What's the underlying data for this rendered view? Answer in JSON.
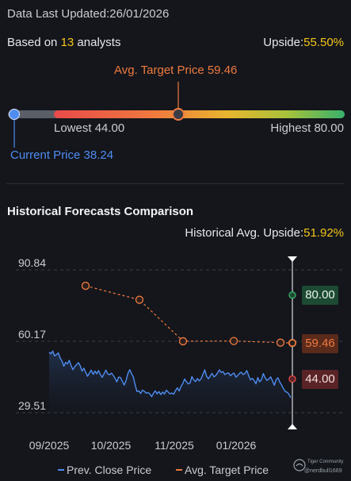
{
  "header": {
    "updated_label": "Data Last Updated:",
    "updated_date": "26/01/2026"
  },
  "consensus": {
    "prefix": "Based on ",
    "count": "13",
    "suffix": " analysts",
    "upside_label": "Upside:",
    "upside_value": "55.50%"
  },
  "range_bar": {
    "avg_label": "Avg. Target Price 59.46",
    "lowest_label": "Lowest 44.00",
    "highest_label": "Highest 80.00",
    "current_label": "Current Price 38.24",
    "lowest": 44.0,
    "highest": 80.0,
    "avg": 59.46,
    "current": 38.24,
    "colors": {
      "current": "#4f8cf0",
      "avg": "#f07a3e"
    }
  },
  "history": {
    "title": "Historical Forecasts Comparison",
    "upside_label": "Historical Avg. Upside:",
    "upside_value": "51.92%"
  },
  "tags": {
    "high": "80.00",
    "avg": "59.46",
    "low": "44.00"
  },
  "watermark": {
    "brand": "Tiger Community",
    "user": "@nerdbull1669"
  },
  "chart_data": {
    "type": "line",
    "y_ticks": [
      "90.84",
      "60.17",
      "29.51"
    ],
    "ylim": [
      29.51,
      90.84
    ],
    "x_ticks": [
      "09/2025",
      "10/2025",
      "11/2025",
      "01/2026"
    ],
    "series": [
      {
        "name": "Prev. Close Price",
        "color": "#4f8cf0",
        "values": [
          55.5,
          54.8,
          56.0,
          53.9,
          54.5,
          55.2,
          53.0,
          51.8,
          49.5,
          51.1,
          50.5,
          52.0,
          49.8,
          48.0,
          49.3,
          50.2,
          51.0,
          49.6,
          47.4,
          48.6,
          46.9,
          45.2,
          46.5,
          47.8,
          46.0,
          47.4,
          46.2,
          47.6,
          45.9,
          44.7,
          46.2,
          47.8,
          46.2,
          45.8,
          46.5,
          45.6,
          44.3,
          42.8,
          44.8,
          44.6,
          43.0,
          41.4,
          43.2,
          46.3,
          48.0,
          46.3,
          44.9,
          41.4,
          38.6,
          38.9,
          37.8,
          39.2,
          38.7,
          37.9,
          38.2,
          37.6,
          36.4,
          37.9,
          38.9,
          37.6,
          38.6,
          37.3,
          38.4,
          37.5,
          39.2,
          38.4,
          37.6,
          38.0,
          37.4,
          38.9,
          40.2,
          38.8,
          40.8,
          42.0,
          44.0,
          42.8,
          41.9,
          42.3,
          45.0,
          43.6,
          42.9,
          44.2,
          43.2,
          44.1,
          46.0,
          47.9,
          45.2,
          44.1,
          45.3,
          46.4,
          44.9,
          45.5,
          46.6,
          47.9,
          46.8,
          47.2,
          45.9,
          46.4,
          46.6,
          45.4,
          46.1,
          46.5,
          44.8,
          45.5,
          46.4,
          46.9,
          45.9,
          46.4,
          47.6,
          45.4,
          43.6,
          44.3,
          43.3,
          41.9,
          44.6,
          42.8,
          43.7,
          46.3,
          44.5,
          43.4,
          44.0,
          44.9,
          43.2,
          41.3,
          43.7,
          44.5,
          42.7,
          41.4,
          39.8,
          38.6,
          38.3,
          37.4,
          36.0
        ]
      },
      {
        "name": "Avg. Target Price",
        "color": "#f07a3e",
        "points": [
          {
            "x": "09/2025",
            "y": 84.0
          },
          {
            "x": "10/2025",
            "y": 78.0
          },
          {
            "x": "11/2025",
            "y": 60.2
          },
          {
            "x": "12/2025",
            "y": 60.3
          },
          {
            "x": "01/2026",
            "y": 59.6
          },
          {
            "x": "01/2026",
            "y": 59.46
          }
        ]
      }
    ],
    "reference_lines": [
      80.0,
      59.46,
      44.0
    ],
    "legend": {
      "position": "bottom"
    },
    "grid": true
  }
}
